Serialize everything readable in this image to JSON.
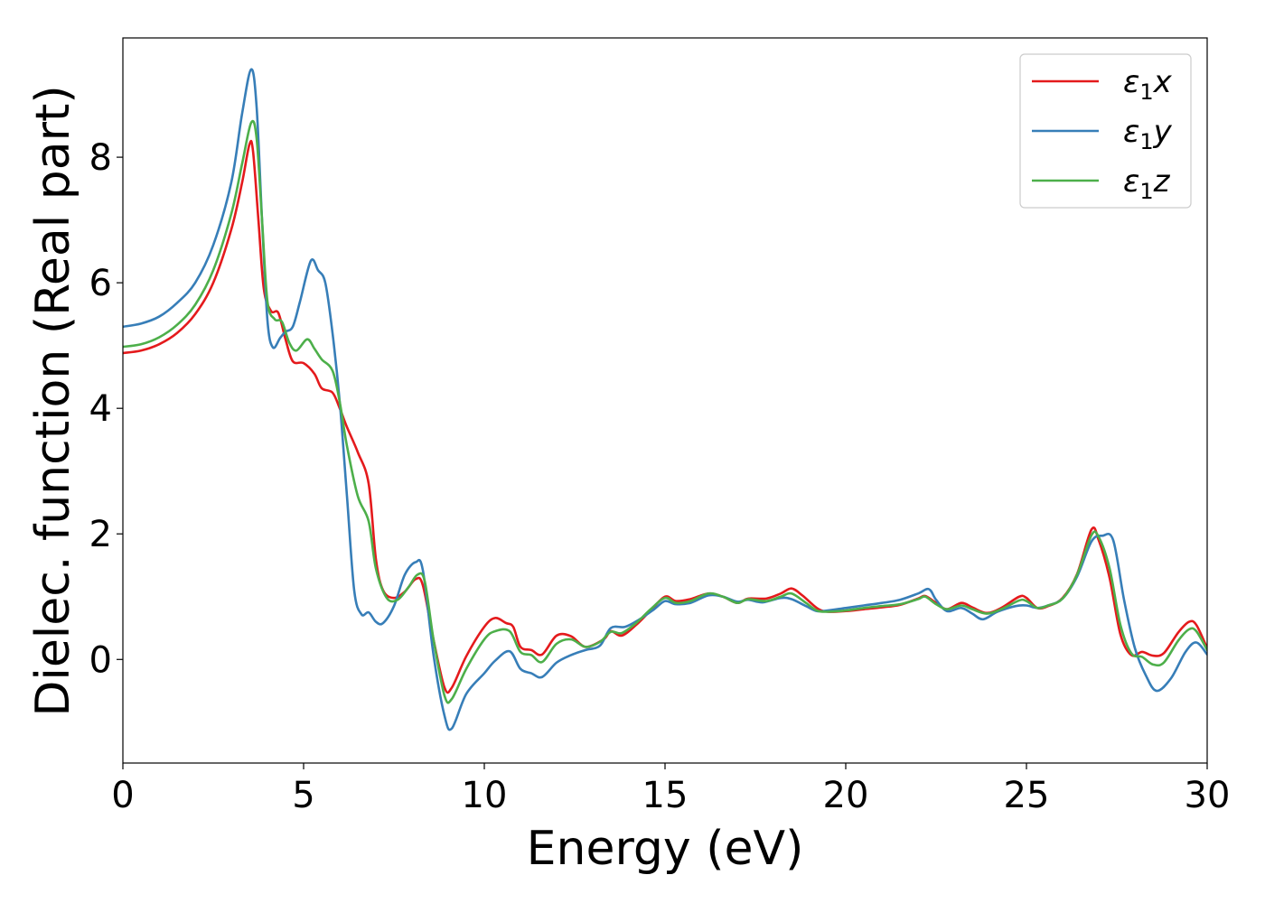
{
  "chart_data": {
    "type": "line",
    "title": "",
    "xlabel": "Energy (eV)",
    "ylabel": "Dielec. function (Real part)",
    "xlim": [
      0,
      30
    ],
    "ylim": [
      -1.65,
      9.9
    ],
    "xticks": [
      "0",
      "5",
      "10",
      "15",
      "20",
      "25",
      "30"
    ],
    "yticks": [
      "0",
      "2",
      "4",
      "6",
      "8"
    ],
    "grid": false,
    "legend_position": "top-right",
    "series": [
      {
        "name": "ε1x",
        "legend": {
          "base": "ε",
          "sub": "1",
          "suffix": "x"
        },
        "color": "#e41a1c",
        "points": [
          [
            0,
            4.88
          ],
          [
            0.5,
            4.92
          ],
          [
            1,
            5.02
          ],
          [
            1.5,
            5.2
          ],
          [
            2,
            5.5
          ],
          [
            2.5,
            6.0
          ],
          [
            3,
            6.85
          ],
          [
            3.3,
            7.6
          ],
          [
            3.5,
            8.2
          ],
          [
            3.6,
            8.1
          ],
          [
            3.75,
            7.0
          ],
          [
            3.9,
            5.9
          ],
          [
            4.1,
            5.55
          ],
          [
            4.3,
            5.52
          ],
          [
            4.5,
            5.1
          ],
          [
            4.7,
            4.75
          ],
          [
            5,
            4.72
          ],
          [
            5.3,
            4.55
          ],
          [
            5.5,
            4.32
          ],
          [
            5.8,
            4.25
          ],
          [
            6,
            4.0
          ],
          [
            6.2,
            3.7
          ],
          [
            6.5,
            3.3
          ],
          [
            6.8,
            2.8
          ],
          [
            7,
            1.6
          ],
          [
            7.2,
            1.1
          ],
          [
            7.5,
            0.98
          ],
          [
            7.8,
            1.08
          ],
          [
            8.1,
            1.28
          ],
          [
            8.3,
            1.18
          ],
          [
            8.6,
            0.3
          ],
          [
            8.9,
            -0.45
          ],
          [
            9.1,
            -0.45
          ],
          [
            9.5,
            0.05
          ],
          [
            10,
            0.52
          ],
          [
            10.3,
            0.66
          ],
          [
            10.6,
            0.58
          ],
          [
            10.8,
            0.52
          ],
          [
            11,
            0.2
          ],
          [
            11.3,
            0.15
          ],
          [
            11.6,
            0.08
          ],
          [
            12,
            0.38
          ],
          [
            12.4,
            0.37
          ],
          [
            12.8,
            0.2
          ],
          [
            13.3,
            0.32
          ],
          [
            13.5,
            0.45
          ],
          [
            13.8,
            0.38
          ],
          [
            14.2,
            0.55
          ],
          [
            14.6,
            0.78
          ],
          [
            15,
            1.0
          ],
          [
            15.3,
            0.93
          ],
          [
            15.7,
            0.96
          ],
          [
            16.2,
            1.05
          ],
          [
            16.6,
            1.0
          ],
          [
            17,
            0.9
          ],
          [
            17.3,
            0.97
          ],
          [
            17.8,
            0.97
          ],
          [
            18.2,
            1.05
          ],
          [
            18.5,
            1.13
          ],
          [
            18.8,
            1.02
          ],
          [
            19.2,
            0.82
          ],
          [
            19.5,
            0.76
          ],
          [
            20,
            0.77
          ],
          [
            20.5,
            0.8
          ],
          [
            21,
            0.83
          ],
          [
            21.5,
            0.87
          ],
          [
            22,
            0.97
          ],
          [
            22.2,
            1.01
          ],
          [
            22.5,
            0.9
          ],
          [
            22.8,
            0.8
          ],
          [
            23.2,
            0.9
          ],
          [
            23.5,
            0.83
          ],
          [
            23.9,
            0.74
          ],
          [
            24.3,
            0.82
          ],
          [
            24.8,
            1.0
          ],
          [
            25,
            0.98
          ],
          [
            25.3,
            0.82
          ],
          [
            25.6,
            0.85
          ],
          [
            26,
            0.98
          ],
          [
            26.4,
            1.36
          ],
          [
            26.8,
            2.07
          ],
          [
            27,
            1.9
          ],
          [
            27.3,
            1.3
          ],
          [
            27.6,
            0.4
          ],
          [
            27.9,
            0.07
          ],
          [
            28.2,
            0.12
          ],
          [
            28.5,
            0.06
          ],
          [
            28.8,
            0.1
          ],
          [
            29.2,
            0.43
          ],
          [
            29.5,
            0.6
          ],
          [
            29.7,
            0.55
          ],
          [
            30,
            0.18
          ]
        ]
      },
      {
        "name": "ε1y",
        "legend": {
          "base": "ε",
          "sub": "1",
          "suffix": "y"
        },
        "color": "#377eb8",
        "points": [
          [
            0,
            5.3
          ],
          [
            0.5,
            5.35
          ],
          [
            1,
            5.46
          ],
          [
            1.5,
            5.68
          ],
          [
            2,
            6.0
          ],
          [
            2.5,
            6.6
          ],
          [
            3,
            7.6
          ],
          [
            3.3,
            8.7
          ],
          [
            3.55,
            9.4
          ],
          [
            3.7,
            8.8
          ],
          [
            3.85,
            7.0
          ],
          [
            4,
            5.4
          ],
          [
            4.15,
            4.97
          ],
          [
            4.35,
            5.12
          ],
          [
            4.5,
            5.22
          ],
          [
            4.7,
            5.3
          ],
          [
            4.9,
            5.7
          ],
          [
            5.2,
            6.35
          ],
          [
            5.4,
            6.2
          ],
          [
            5.6,
            6.0
          ],
          [
            5.8,
            5.2
          ],
          [
            6,
            4.1
          ],
          [
            6.2,
            2.6
          ],
          [
            6.4,
            1.1
          ],
          [
            6.6,
            0.72
          ],
          [
            6.8,
            0.75
          ],
          [
            7,
            0.6
          ],
          [
            7.2,
            0.58
          ],
          [
            7.5,
            0.85
          ],
          [
            7.8,
            1.35
          ],
          [
            8.1,
            1.55
          ],
          [
            8.3,
            1.42
          ],
          [
            8.6,
            0.05
          ],
          [
            8.9,
            -0.9
          ],
          [
            9.1,
            -1.1
          ],
          [
            9.5,
            -0.55
          ],
          [
            10,
            -0.22
          ],
          [
            10.3,
            -0.02
          ],
          [
            10.7,
            0.13
          ],
          [
            11,
            -0.15
          ],
          [
            11.3,
            -0.22
          ],
          [
            11.6,
            -0.28
          ],
          [
            12,
            -0.05
          ],
          [
            12.4,
            0.07
          ],
          [
            12.8,
            0.15
          ],
          [
            13.2,
            0.22
          ],
          [
            13.5,
            0.5
          ],
          [
            13.9,
            0.52
          ],
          [
            14.3,
            0.64
          ],
          [
            14.7,
            0.8
          ],
          [
            15,
            0.93
          ],
          [
            15.3,
            0.88
          ],
          [
            15.7,
            0.9
          ],
          [
            16.2,
            1.02
          ],
          [
            16.6,
            1.0
          ],
          [
            17,
            0.92
          ],
          [
            17.3,
            0.95
          ],
          [
            17.7,
            0.91
          ],
          [
            18.2,
            0.98
          ],
          [
            18.5,
            0.96
          ],
          [
            18.9,
            0.85
          ],
          [
            19.2,
            0.77
          ],
          [
            19.5,
            0.78
          ],
          [
            20,
            0.82
          ],
          [
            20.5,
            0.86
          ],
          [
            21,
            0.9
          ],
          [
            21.5,
            0.95
          ],
          [
            22,
            1.05
          ],
          [
            22.3,
            1.12
          ],
          [
            22.5,
            0.95
          ],
          [
            22.8,
            0.77
          ],
          [
            23.2,
            0.82
          ],
          [
            23.5,
            0.73
          ],
          [
            23.8,
            0.64
          ],
          [
            24.2,
            0.76
          ],
          [
            24.7,
            0.85
          ],
          [
            25,
            0.86
          ],
          [
            25.3,
            0.82
          ],
          [
            25.6,
            0.86
          ],
          [
            26,
            0.97
          ],
          [
            26.4,
            1.32
          ],
          [
            26.8,
            1.88
          ],
          [
            27.1,
            1.97
          ],
          [
            27.4,
            1.9
          ],
          [
            27.7,
            0.95
          ],
          [
            28,
            0.18
          ],
          [
            28.3,
            -0.25
          ],
          [
            28.6,
            -0.5
          ],
          [
            29,
            -0.3
          ],
          [
            29.4,
            0.12
          ],
          [
            29.7,
            0.27
          ],
          [
            30,
            0.08
          ]
        ]
      },
      {
        "name": "ε1z",
        "legend": {
          "base": "ε",
          "sub": "1",
          "suffix": "z"
        },
        "color": "#4daf4a",
        "points": [
          [
            0,
            4.98
          ],
          [
            0.5,
            5.02
          ],
          [
            1,
            5.13
          ],
          [
            1.5,
            5.33
          ],
          [
            2,
            5.65
          ],
          [
            2.5,
            6.2
          ],
          [
            3,
            7.1
          ],
          [
            3.3,
            7.9
          ],
          [
            3.55,
            8.55
          ],
          [
            3.7,
            8.3
          ],
          [
            3.85,
            7.0
          ],
          [
            4,
            5.7
          ],
          [
            4.2,
            5.42
          ],
          [
            4.4,
            5.38
          ],
          [
            4.6,
            5.05
          ],
          [
            4.8,
            4.92
          ],
          [
            5.1,
            5.1
          ],
          [
            5.3,
            4.95
          ],
          [
            5.5,
            4.78
          ],
          [
            5.8,
            4.6
          ],
          [
            6,
            4.1
          ],
          [
            6.2,
            3.4
          ],
          [
            6.5,
            2.6
          ],
          [
            6.8,
            2.2
          ],
          [
            7,
            1.45
          ],
          [
            7.3,
            0.98
          ],
          [
            7.6,
            0.95
          ],
          [
            7.9,
            1.15
          ],
          [
            8.15,
            1.35
          ],
          [
            8.35,
            1.25
          ],
          [
            8.6,
            0.3
          ],
          [
            8.9,
            -0.58
          ],
          [
            9.1,
            -0.63
          ],
          [
            9.5,
            -0.15
          ],
          [
            10,
            0.32
          ],
          [
            10.3,
            0.45
          ],
          [
            10.7,
            0.45
          ],
          [
            11,
            0.12
          ],
          [
            11.3,
            0.07
          ],
          [
            11.6,
            -0.04
          ],
          [
            12,
            0.25
          ],
          [
            12.4,
            0.32
          ],
          [
            12.8,
            0.2
          ],
          [
            13.2,
            0.28
          ],
          [
            13.5,
            0.44
          ],
          [
            13.8,
            0.42
          ],
          [
            14.2,
            0.58
          ],
          [
            14.6,
            0.8
          ],
          [
            15,
            0.98
          ],
          [
            15.3,
            0.9
          ],
          [
            15.7,
            0.93
          ],
          [
            16.2,
            1.05
          ],
          [
            16.6,
            1.0
          ],
          [
            17,
            0.9
          ],
          [
            17.3,
            0.96
          ],
          [
            17.8,
            0.93
          ],
          [
            18.2,
            1.0
          ],
          [
            18.5,
            1.05
          ],
          [
            18.9,
            0.9
          ],
          [
            19.2,
            0.78
          ],
          [
            19.5,
            0.76
          ],
          [
            20,
            0.78
          ],
          [
            20.5,
            0.82
          ],
          [
            21,
            0.85
          ],
          [
            21.5,
            0.88
          ],
          [
            22,
            0.96
          ],
          [
            22.2,
            1.0
          ],
          [
            22.5,
            0.88
          ],
          [
            22.8,
            0.8
          ],
          [
            23.2,
            0.86
          ],
          [
            23.5,
            0.8
          ],
          [
            23.9,
            0.73
          ],
          [
            24.3,
            0.8
          ],
          [
            24.8,
            0.94
          ],
          [
            25,
            0.93
          ],
          [
            25.3,
            0.82
          ],
          [
            25.6,
            0.86
          ],
          [
            26,
            0.97
          ],
          [
            26.4,
            1.35
          ],
          [
            26.8,
            1.98
          ],
          [
            27,
            1.95
          ],
          [
            27.3,
            1.45
          ],
          [
            27.6,
            0.55
          ],
          [
            27.9,
            0.1
          ],
          [
            28.2,
            0.04
          ],
          [
            28.5,
            -0.08
          ],
          [
            28.8,
            -0.05
          ],
          [
            29.2,
            0.3
          ],
          [
            29.5,
            0.48
          ],
          [
            29.7,
            0.45
          ],
          [
            30,
            0.15
          ]
        ]
      }
    ]
  }
}
